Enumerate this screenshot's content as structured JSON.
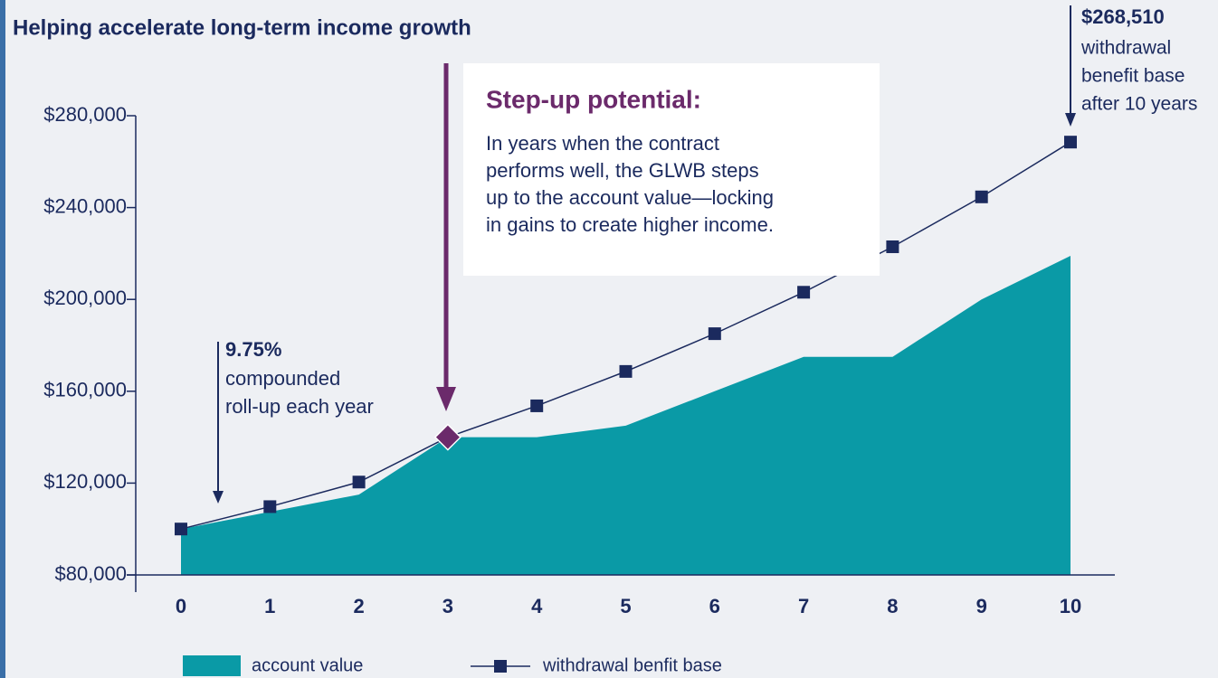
{
  "chart_data": {
    "type": "area-line",
    "title": "Helping accelerate long-term income growth",
    "x": [
      0,
      1,
      2,
      3,
      4,
      5,
      6,
      7,
      8,
      9,
      10
    ],
    "ylim": [
      80000,
      280000
    ],
    "yticks": [
      {
        "value": 80000,
        "label": "$80,000"
      },
      {
        "value": 120000,
        "label": "$120,000"
      },
      {
        "value": 160000,
        "label": "$160,000"
      },
      {
        "value": 200000,
        "label": "$200,000"
      },
      {
        "value": 240000,
        "label": "$240,000"
      },
      {
        "value": 280000,
        "label": "$280,000"
      }
    ],
    "series": [
      {
        "name": "account value",
        "color": "#0a9aa6",
        "style": "area",
        "values": [
          100000,
          107500,
          115000,
          140000,
          140000,
          145000,
          160000,
          175000,
          175000,
          200000,
          219000
        ]
      },
      {
        "name": "withdrawal benfit base",
        "color": "#1b2a5e",
        "style": "line-markers",
        "values": [
          100000,
          109750,
          120451,
          140000,
          153650,
          168630,
          185071,
          203115,
          222919,
          244653,
          268510
        ],
        "value_labels": [
          null,
          null,
          null,
          null,
          null,
          null,
          null,
          null,
          null,
          null,
          "$268,510"
        ]
      }
    ],
    "annotations": {
      "step_up_title": "Step-up potential:",
      "step_up_lines": [
        "In years when the contract",
        "performs well, the GLWB steps",
        "up to the account value—locking",
        "in gains to create higher income."
      ],
      "rollup_rate": "9.75%",
      "rollup_lines": [
        "compounded",
        "roll-up each year"
      ],
      "final_lines": [
        "withdrawal",
        "benefit base",
        "after 10 years"
      ]
    }
  }
}
